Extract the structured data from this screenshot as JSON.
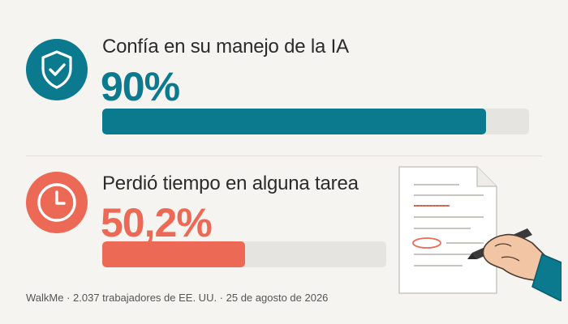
{
  "stats": [
    {
      "label": "Confía en su manejo de la IA",
      "value_text": "90%",
      "percent": 90,
      "color": "#0b7a8f",
      "icon": "shield-check-icon"
    },
    {
      "label": "Perdió tiempo en alguna tarea",
      "value_text": "50,2%",
      "percent": 50.2,
      "color": "#ec6a55",
      "icon": "clock-icon"
    }
  ],
  "footer": {
    "text": "WalkMe · 2.037 trabajadores de EE. UU. · 25 de agosto de 2026"
  },
  "colors": {
    "background": "#f6f4f1",
    "track": "#e6e4e1"
  }
}
